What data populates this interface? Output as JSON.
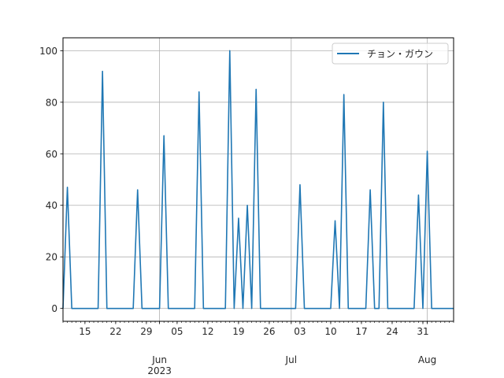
{
  "chart_data": {
    "type": "line",
    "series": [
      {
        "name": "チョン・ガウン",
        "color": "#1f77b4",
        "points": [
          [
            "2023-05-10",
            0
          ],
          [
            "2023-05-11",
            47
          ],
          [
            "2023-05-12",
            0
          ],
          [
            "2023-05-18",
            0
          ],
          [
            "2023-05-19",
            92
          ],
          [
            "2023-05-20",
            0
          ],
          [
            "2023-05-26",
            0
          ],
          [
            "2023-05-27",
            46
          ],
          [
            "2023-05-28",
            0
          ],
          [
            "2023-06-01",
            0
          ],
          [
            "2023-06-02",
            67
          ],
          [
            "2023-06-03",
            0
          ],
          [
            "2023-06-09",
            0
          ],
          [
            "2023-06-10",
            84
          ],
          [
            "2023-06-11",
            0
          ],
          [
            "2023-06-16",
            0
          ],
          [
            "2023-06-17",
            100
          ],
          [
            "2023-06-18",
            0
          ],
          [
            "2023-06-19",
            35
          ],
          [
            "2023-06-20",
            0
          ],
          [
            "2023-06-21",
            40
          ],
          [
            "2023-06-22",
            0
          ],
          [
            "2023-06-23",
            85
          ],
          [
            "2023-06-24",
            0
          ],
          [
            "2023-07-02",
            0
          ],
          [
            "2023-07-03",
            48
          ],
          [
            "2023-07-04",
            0
          ],
          [
            "2023-07-10",
            0
          ],
          [
            "2023-07-11",
            34
          ],
          [
            "2023-07-12",
            0
          ],
          [
            "2023-07-13",
            83
          ],
          [
            "2023-07-14",
            0
          ],
          [
            "2023-07-18",
            0
          ],
          [
            "2023-07-19",
            46
          ],
          [
            "2023-07-20",
            0
          ],
          [
            "2023-07-21",
            0
          ],
          [
            "2023-07-22",
            80
          ],
          [
            "2023-07-23",
            0
          ],
          [
            "2023-07-29",
            0
          ],
          [
            "2023-07-30",
            44
          ],
          [
            "2023-07-31",
            0
          ],
          [
            "2023-08-01",
            61
          ],
          [
            "2023-08-02",
            0
          ],
          [
            "2023-08-07",
            0
          ]
        ]
      }
    ],
    "xlim": [
      "2023-05-10",
      "2023-08-07"
    ],
    "ylim": [
      -5,
      105
    ],
    "y_ticks": [
      0,
      20,
      40,
      60,
      80,
      100
    ],
    "x_minor_ticks": [
      {
        "date": "2023-05-15",
        "label": "15"
      },
      {
        "date": "2023-05-22",
        "label": "22"
      },
      {
        "date": "2023-05-29",
        "label": "29"
      },
      {
        "date": "2023-06-05",
        "label": "05"
      },
      {
        "date": "2023-06-12",
        "label": "12"
      },
      {
        "date": "2023-06-19",
        "label": "19"
      },
      {
        "date": "2023-06-26",
        "label": "26"
      },
      {
        "date": "2023-07-03",
        "label": "03"
      },
      {
        "date": "2023-07-10",
        "label": "10"
      },
      {
        "date": "2023-07-17",
        "label": "17"
      },
      {
        "date": "2023-07-24",
        "label": "24"
      },
      {
        "date": "2023-07-31",
        "label": "31"
      }
    ],
    "x_major_ticks": [
      {
        "date": "2023-06-01",
        "label": "Jun",
        "sublabel": "2023"
      },
      {
        "date": "2023-07-01",
        "label": "Jul",
        "sublabel": ""
      },
      {
        "date": "2023-08-01",
        "label": "Aug",
        "sublabel": ""
      }
    ],
    "grid": true,
    "legend_position": "upper right"
  }
}
